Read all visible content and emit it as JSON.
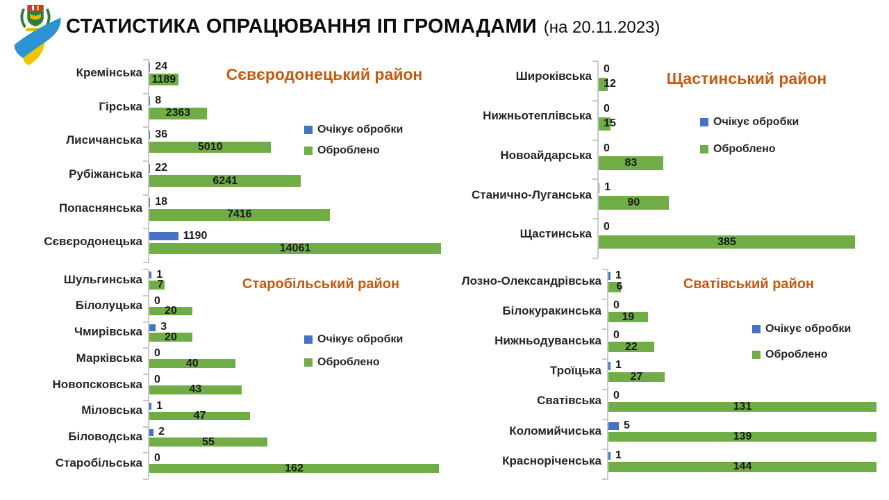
{
  "header": {
    "title": "СТАТИСТИКА ОПРАЦЮВАННЯ ІП ГРОМАДАМИ",
    "date_suffix": "(на 20.11.2023)",
    "logo": "regional-coat-of-arms-with-ukraine-flag-swoosh"
  },
  "colors": {
    "pending": "#4472C4",
    "processed": "#70AD47",
    "chart_title": "#C55A11",
    "text": "#262626",
    "axis": "#C9C9C9"
  },
  "chart_data": [
    {
      "type": "bar",
      "orientation": "horizontal",
      "title": "Сєвєродонецький район",
      "categories": [
        "Кремінська",
        "Гірська",
        "Лисичанська",
        "Рубіжанська",
        "Попаснянська",
        "Сєвєродонецька"
      ],
      "series": [
        {
          "name": "Очікує обробки",
          "color": "#4472C4",
          "values": [
            24,
            8,
            36,
            22,
            18,
            1190
          ]
        },
        {
          "name": "Оброблено",
          "color": "#70AD47",
          "values": [
            1189,
            2363,
            5010,
            6241,
            7416,
            14061
          ]
        }
      ],
      "xlim": [
        0,
        12000
      ],
      "bars_clipped_at_xmax": true,
      "data_labels": true,
      "gridlines": false,
      "legend_position": "middle-right"
    },
    {
      "type": "bar",
      "orientation": "horizontal",
      "title": "Щастинський район",
      "categories": [
        "Широківська",
        "Нижньотеплівська",
        "Новоайдарська",
        "Станично-Луганська",
        "Щастинська"
      ],
      "series": [
        {
          "name": "Очікує обробки",
          "color": "#4472C4",
          "values": [
            0,
            0,
            0,
            1,
            0
          ]
        },
        {
          "name": "Оброблено",
          "color": "#70AD47",
          "values": [
            12,
            15,
            83,
            90,
            385
          ]
        }
      ],
      "xlim": [
        0,
        330
      ],
      "bars_clipped_at_xmax": true,
      "data_labels": true,
      "gridlines": false,
      "legend_position": "middle-right"
    },
    {
      "type": "bar",
      "orientation": "horizontal",
      "title": "Старобільський район",
      "categories": [
        "Шульгинська",
        "Білолуцька",
        "Чмирівська",
        "Марківська",
        "Новопсковська",
        "Міловська",
        "Біловодська",
        "Старобільська"
      ],
      "series": [
        {
          "name": "Очікує обробки",
          "color": "#4472C4",
          "values": [
            1,
            0,
            3,
            0,
            0,
            1,
            2,
            0
          ]
        },
        {
          "name": "Оброблено",
          "color": "#70AD47",
          "values": [
            7,
            20,
            20,
            40,
            43,
            47,
            55,
            162
          ]
        }
      ],
      "xlim": [
        0,
        135
      ],
      "bars_clipped_at_xmax": true,
      "data_labels": true,
      "gridlines": false,
      "legend_position": "middle-right"
    },
    {
      "type": "bar",
      "orientation": "horizontal",
      "title": "Сватівський район",
      "categories": [
        "Лозно-Олександрівська",
        "Білокуракинська",
        "Нижньодуванська",
        "Троїцька",
        "Сватівська",
        "Коломийчиська",
        "Красноріченська"
      ],
      "series": [
        {
          "name": "Очікує обробки",
          "color": "#4472C4",
          "values": [
            1,
            0,
            0,
            1,
            0,
            5,
            1
          ]
        },
        {
          "name": "Оброблено",
          "color": "#70AD47",
          "values": [
            6,
            19,
            22,
            27,
            131,
            139,
            144
          ]
        }
      ],
      "xlim": [
        0,
        129
      ],
      "bars_clipped_at_xmax": true,
      "data_labels": true,
      "gridlines": false,
      "legend_position": "middle-right"
    }
  ]
}
